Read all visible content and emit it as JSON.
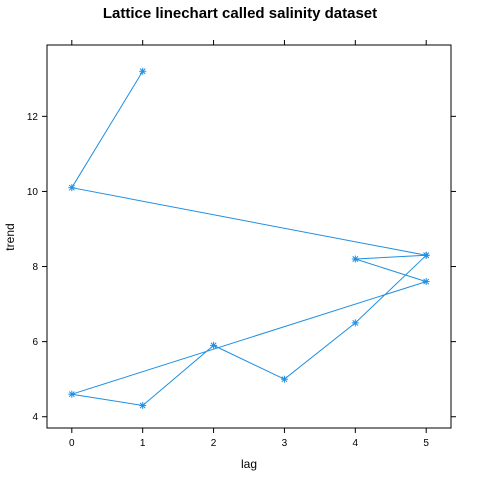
{
  "chart_data": {
    "type": "line",
    "title": "Lattice linechart called salinity dataset",
    "xlabel": "lag",
    "ylabel": "trend",
    "xlim": [
      -0.35,
      5.35
    ],
    "ylim": [
      3.7,
      13.9
    ],
    "x_ticks": [
      0,
      1,
      2,
      3,
      4,
      5
    ],
    "y_ticks": [
      4,
      6,
      8,
      10,
      12
    ],
    "grid": false,
    "legend": "none",
    "marker": "asterisk",
    "color": "#1f8fe0",
    "series": [
      {
        "x": [
          1,
          0,
          5,
          4,
          5,
          0,
          1,
          2,
          3,
          4,
          5
        ],
        "y": [
          13.2,
          10.1,
          8.3,
          8.2,
          7.6,
          4.6,
          4.3,
          5.9,
          5.0,
          6.5,
          8.3
        ]
      }
    ]
  }
}
